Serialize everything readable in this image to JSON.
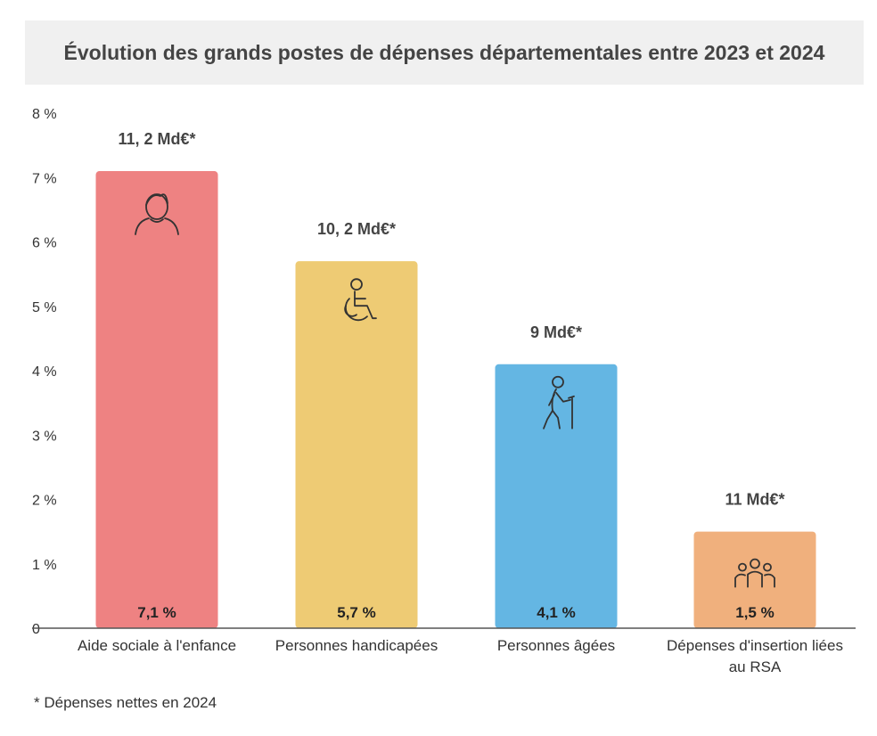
{
  "chart_data": {
    "type": "bar",
    "title": "Évolution des grands postes de dépenses départementales entre 2023 et 2024",
    "categories": [
      "Aide sociale à l'enfance",
      "Personnes handicapées",
      "Personnes âgées",
      "Dépenses d'insertion liées au RSA"
    ],
    "category_lines": [
      [
        "Aide sociale à l'enfance"
      ],
      [
        "Personnes handicapées"
      ],
      [
        "Personnes âgées"
      ],
      [
        "Dépenses d'insertion liées",
        "au RSA"
      ]
    ],
    "values": [
      7.1,
      5.7,
      4.1,
      1.5
    ],
    "value_labels": [
      "7,1 %",
      "5,7 %",
      "4,1 %",
      "1,5 %"
    ],
    "top_labels": [
      "11, 2 Md€*",
      "10, 2 Md€*",
      "9 Md€*",
      "11 Md€*"
    ],
    "icons": [
      "child-icon",
      "wheelchair-icon",
      "elderly-person-icon",
      "group-icon"
    ],
    "colors": [
      "#ee8282",
      "#eecb74",
      "#64b6e3",
      "#f0b07d"
    ],
    "yticks": [
      0,
      1,
      2,
      3,
      4,
      5,
      6,
      7,
      8
    ],
    "ytick_labels": [
      "0",
      "1 %",
      "2 %",
      "3 %",
      "4 %",
      "5 %",
      "6 %",
      "7 %",
      "8 %"
    ],
    "ylim": [
      0,
      8
    ],
    "xlabel": "",
    "ylabel": "",
    "grid": false,
    "legend": "none"
  },
  "footnote": "* Dépenses nettes en 2024"
}
